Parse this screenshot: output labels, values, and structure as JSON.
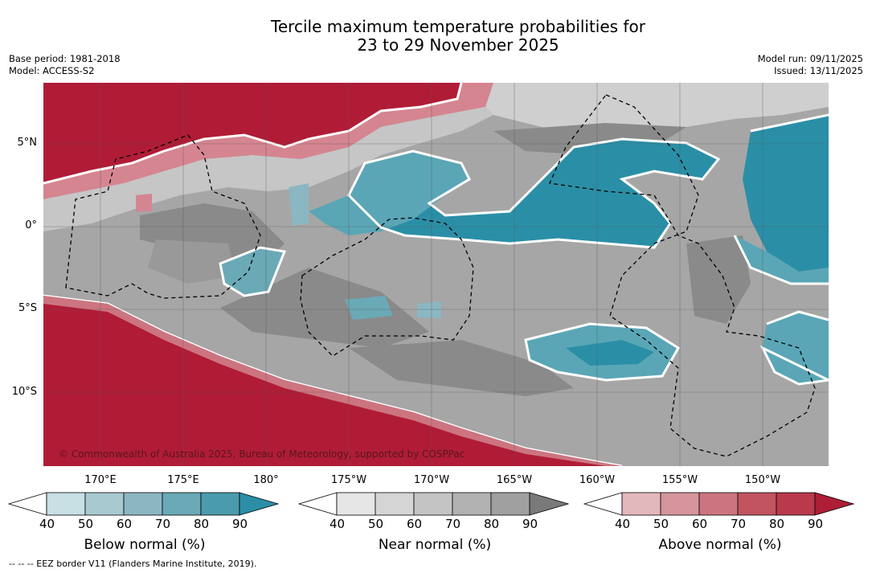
{
  "title_line1": "Tercile maximum temperature probabilities for",
  "title_line2": "23 to 29 November 2025",
  "base_period": "Base period: 1981-2018",
  "model": "Model: ACCESS-S2",
  "model_run": "Model run: 09/11/2025",
  "issued": "Issued: 13/11/2025",
  "lat_labels": [
    "5°N",
    "0°",
    "5°S",
    "10°S"
  ],
  "lon_labels": [
    "170°E",
    "175°E",
    "180°",
    "175°W",
    "170°W",
    "165°W",
    "160°W",
    "155°W",
    "150°W"
  ],
  "copyright": "© Commonwealth of Australia 2025, Bureau of Meteorology, supported by COSPPac",
  "colorbars": [
    {
      "label": "Below normal (%)",
      "ticks": [
        "40",
        "50",
        "60",
        "70",
        "80",
        "90"
      ],
      "colors": [
        "#ffffff",
        "#c8dfe4",
        "#a8c9d0",
        "#8bb7c2",
        "#6aa9b6",
        "#4a9bac",
        "#2b8ea6"
      ]
    },
    {
      "label": "Near normal (%)",
      "ticks": [
        "40",
        "50",
        "60",
        "70",
        "80",
        "90"
      ],
      "colors": [
        "#ffffff",
        "#e6e6e6",
        "#d5d5d5",
        "#c4c4c4",
        "#b2b2b2",
        "#a0a0a0",
        "#7a7a7a"
      ]
    },
    {
      "label": "Above normal (%)",
      "ticks": [
        "40",
        "50",
        "60",
        "70",
        "80",
        "90"
      ],
      "colors": [
        "#ffffff",
        "#e2b8bd",
        "#d6959c",
        "#cc7580",
        "#c2545f",
        "#b83a4b",
        "#ae1e36"
      ]
    }
  ],
  "footnote": "--  --  -- EEZ border V11 (Flanders Marine Institute, 2019).",
  "colors": {
    "above_strong": "#b01c36",
    "above_mid": "#c84a5a",
    "above_light": "#dc9aa2",
    "near_dark": "#8a8a8a",
    "near_mid": "#a6a6a6",
    "near_light": "#cfcfcf",
    "below_strong": "#2a8fa6",
    "below_mid": "#5aa6b6",
    "below_light": "#9cc8d2"
  }
}
